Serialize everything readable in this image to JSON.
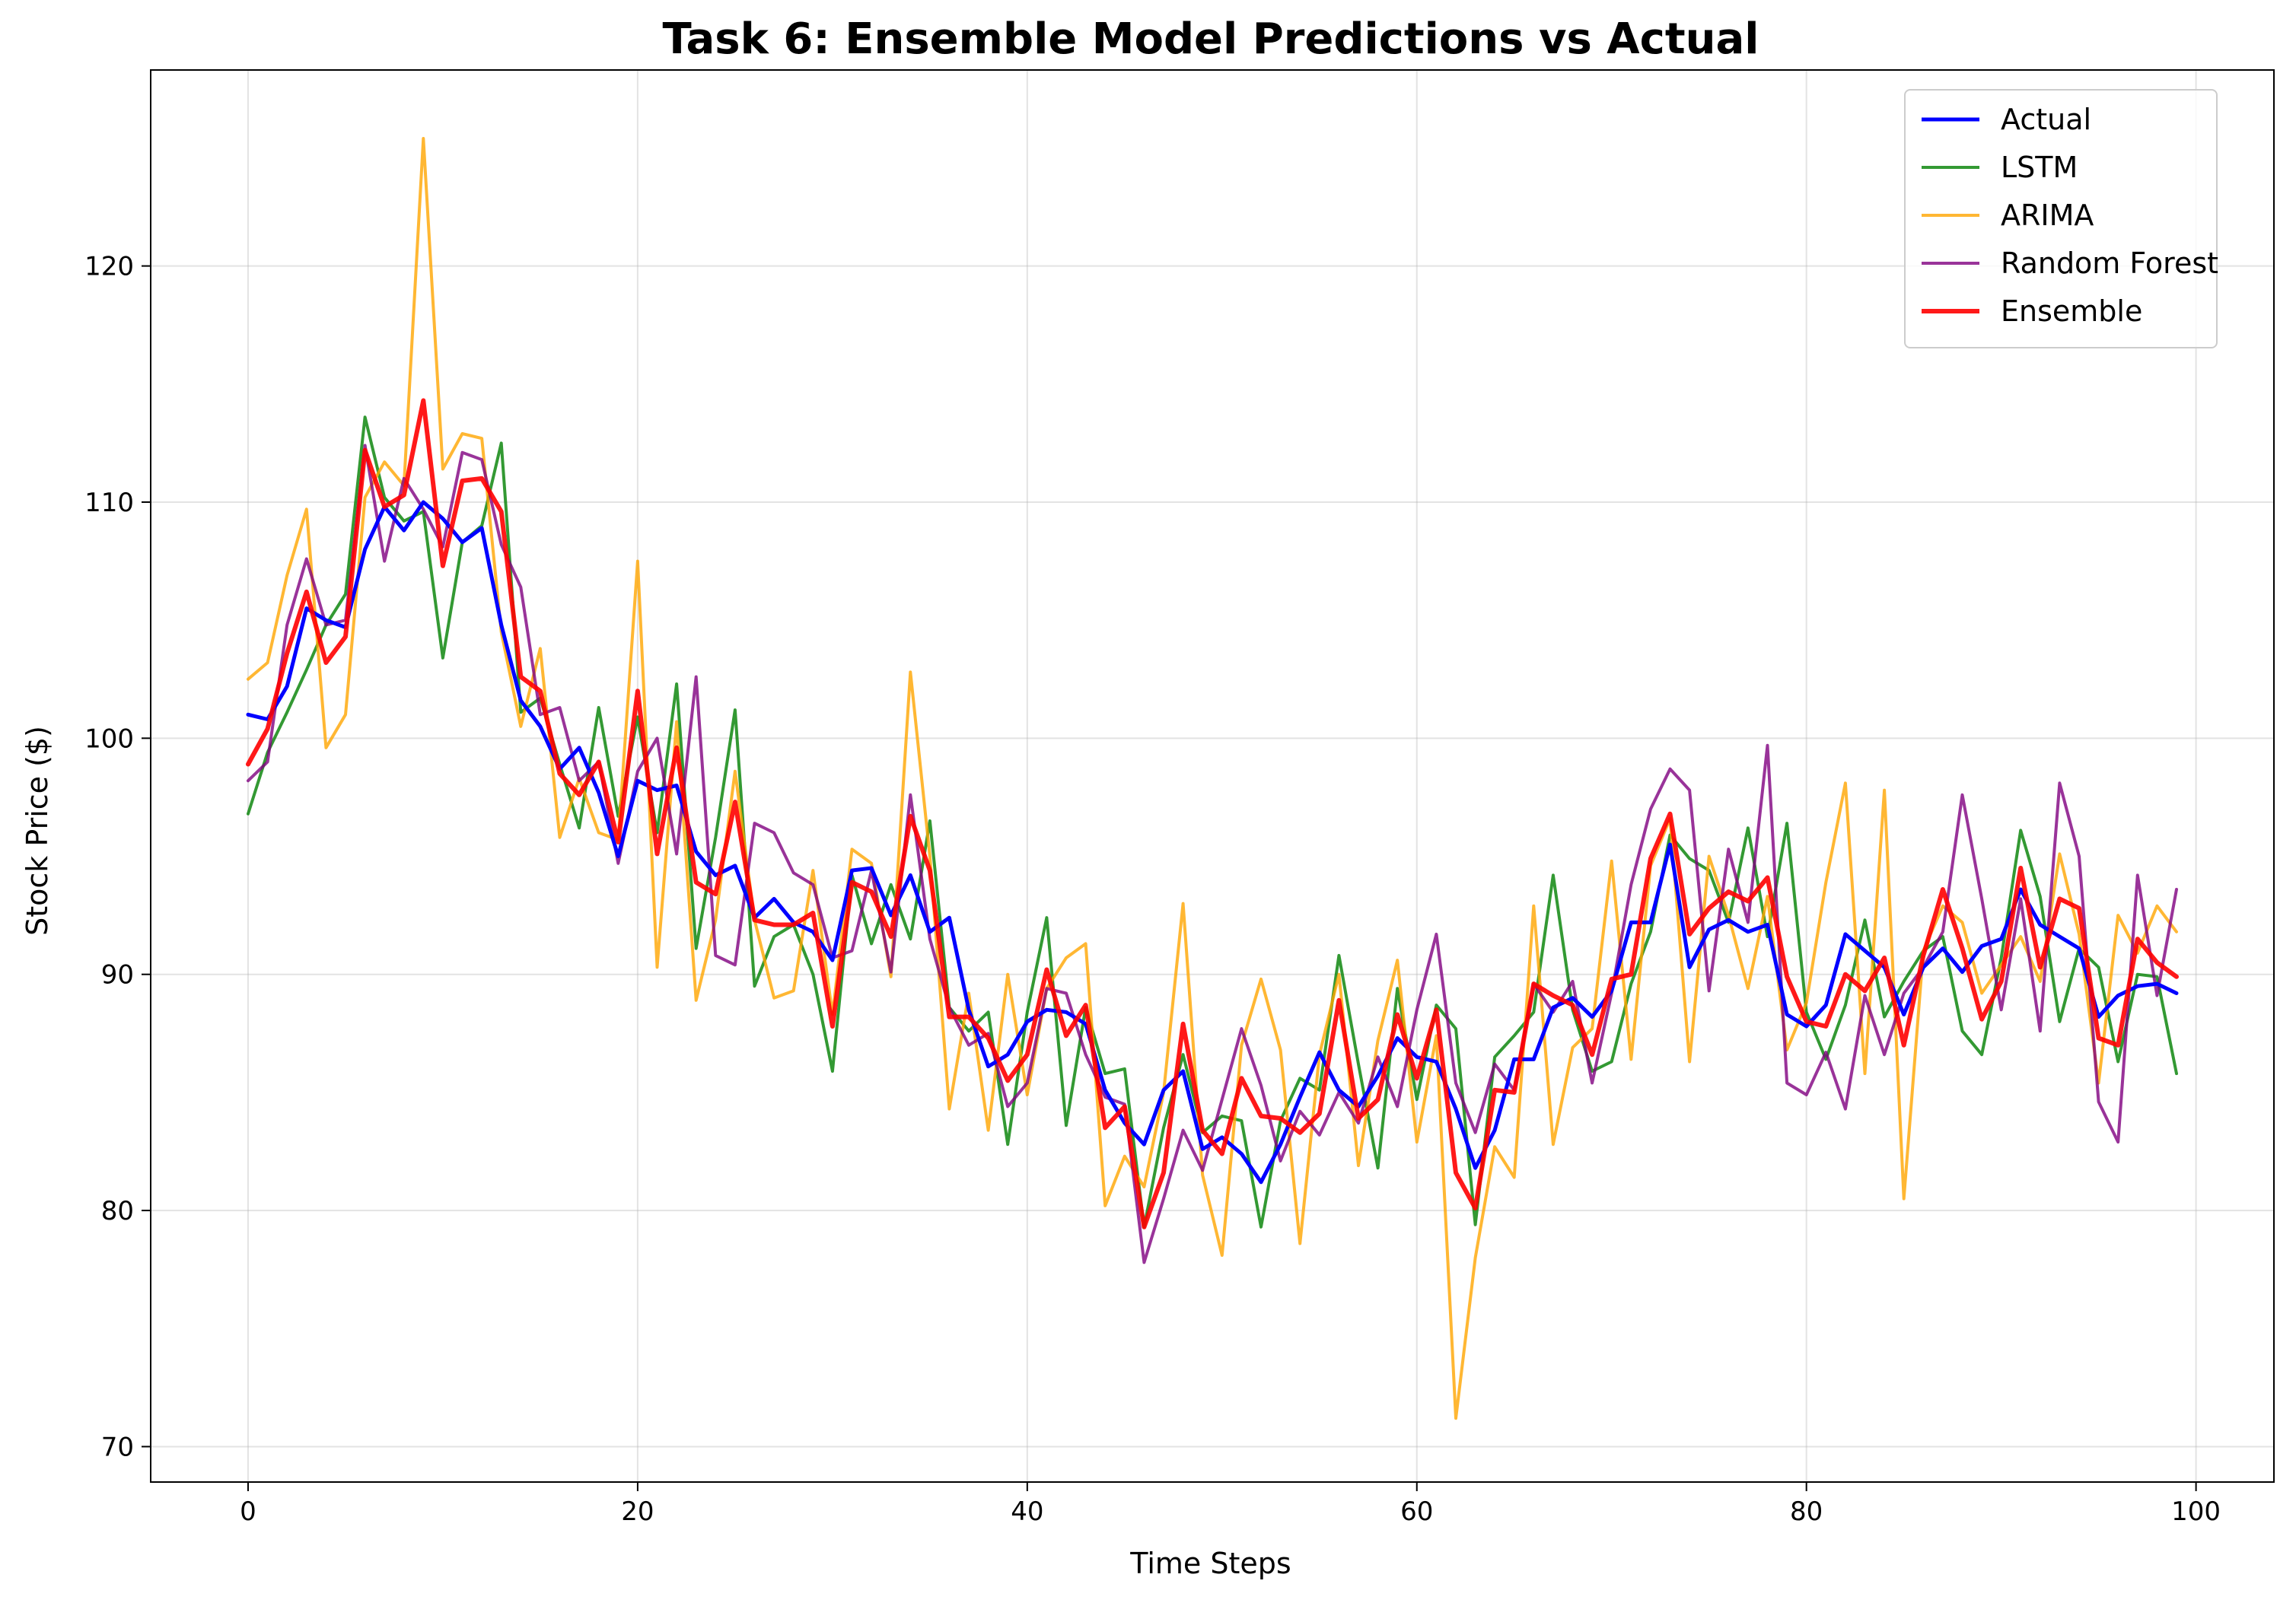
{
  "chart_data": {
    "type": "line",
    "title": "Task 6: Ensemble Model Predictions vs Actual",
    "xlabel": "Time Steps",
    "ylabel": "Stock Price ($)",
    "xlim": [
      -5,
      104
    ],
    "ylim": [
      68.5,
      128.3
    ],
    "xticks": [
      0,
      20,
      40,
      60,
      80,
      100
    ],
    "yticks": [
      70,
      80,
      90,
      100,
      110,
      120
    ],
    "grid": true,
    "legend_position": "upper right",
    "x": [
      0,
      1,
      2,
      3,
      4,
      5,
      6,
      7,
      8,
      9,
      10,
      11,
      12,
      13,
      14,
      15,
      16,
      17,
      18,
      19,
      20,
      21,
      22,
      23,
      24,
      25,
      26,
      27,
      28,
      29,
      30,
      31,
      32,
      33,
      34,
      35,
      36,
      37,
      38,
      39,
      40,
      41,
      42,
      43,
      44,
      45,
      46,
      47,
      48,
      49,
      50,
      51,
      52,
      53,
      54,
      55,
      56,
      57,
      58,
      59,
      60,
      61,
      62,
      63,
      64,
      65,
      66,
      67,
      68,
      69,
      70,
      71,
      72,
      73,
      74,
      75,
      76,
      77,
      78,
      79,
      80,
      81,
      82,
      83,
      84,
      85,
      86,
      87,
      88,
      89,
      90,
      91,
      92,
      93,
      94,
      95,
      96,
      97,
      98,
      99
    ],
    "series": [
      {
        "name": "Actual",
        "color": "#0000ff",
        "width": 2.5,
        "values": [
          101.0,
          100.8,
          102.2,
          105.5,
          105.0,
          104.7,
          108.0,
          109.8,
          108.8,
          110.0,
          109.3,
          108.3,
          108.9,
          104.8,
          101.6,
          100.5,
          98.7,
          99.6,
          97.7,
          95.0,
          98.2,
          97.8,
          98.0,
          95.2,
          94.2,
          94.6,
          92.4,
          93.2,
          92.2,
          91.8,
          90.6,
          94.4,
          94.5,
          92.5,
          94.2,
          91.8,
          92.4,
          88.5,
          86.1,
          86.6,
          88.0,
          88.5,
          88.4,
          87.9,
          85.1,
          83.7,
          82.8,
          85.1,
          85.9,
          82.6,
          83.1,
          82.4,
          81.2,
          82.8,
          84.8,
          86.7,
          85.1,
          84.4,
          85.7,
          87.3,
          86.5,
          86.3,
          84.3,
          81.8,
          83.4,
          86.4,
          86.4,
          88.6,
          89.0,
          88.2,
          89.3,
          92.2,
          92.2,
          95.5,
          90.3,
          91.9,
          92.3,
          91.8,
          92.1,
          88.3,
          87.8,
          88.7,
          91.7,
          91.0,
          90.3,
          88.3,
          90.3,
          91.1,
          90.1,
          91.2,
          91.5,
          93.6,
          92.1,
          91.6,
          91.1,
          88.2,
          89.1,
          89.5,
          89.6,
          89.2
        ]
      },
      {
        "name": "LSTM",
        "color": "#008000",
        "width": 2,
        "values": [
          96.8,
          99.4,
          101.1,
          102.9,
          104.8,
          106.1,
          113.6,
          110.2,
          109.2,
          109.6,
          103.4,
          108.3,
          109.0,
          112.5,
          101.1,
          101.7,
          98.9,
          96.2,
          101.3,
          96.7,
          100.9,
          96.0,
          102.3,
          91.1,
          95.8,
          101.2,
          89.5,
          91.6,
          92.1,
          90.0,
          85.9,
          94.2,
          91.3,
          93.8,
          91.5,
          96.5,
          88.6,
          87.6,
          88.4,
          82.8,
          88.4,
          92.4,
          83.6,
          88.6,
          85.8,
          86.0,
          79.3,
          83.5,
          86.6,
          83.3,
          84.0,
          83.8,
          79.3,
          83.8,
          85.6,
          85.1,
          90.8,
          86.2,
          81.8,
          89.4,
          84.7,
          88.7,
          87.7,
          79.4,
          86.5,
          87.4,
          88.4,
          94.2,
          88.5,
          85.9,
          86.3,
          89.6,
          91.8,
          95.9,
          94.9,
          94.4,
          92.2,
          96.2,
          91.6,
          96.4,
          88.4,
          86.4,
          88.7,
          92.3,
          88.2,
          89.7,
          91.0,
          91.6,
          87.6,
          86.6,
          90.7,
          96.1,
          93.3,
          88.0,
          91.1,
          90.3,
          86.3,
          90.0,
          89.9,
          85.8
        ]
      },
      {
        "name": "ARIMA",
        "color": "#ffa500",
        "width": 2,
        "values": [
          102.5,
          103.2,
          106.9,
          109.7,
          99.6,
          101.0,
          110.2,
          111.7,
          110.7,
          125.4,
          111.4,
          112.9,
          112.7,
          104.5,
          100.5,
          103.8,
          95.8,
          98.3,
          96.0,
          95.7,
          107.5,
          90.3,
          100.7,
          88.9,
          92.3,
          98.6,
          92.3,
          89.0,
          89.3,
          94.4,
          88.3,
          95.3,
          94.7,
          89.9,
          102.8,
          95.0,
          84.3,
          89.2,
          83.4,
          90.0,
          84.9,
          89.4,
          90.7,
          91.3,
          80.2,
          82.3,
          81.0,
          85.0,
          93.0,
          81.5,
          78.1,
          87.0,
          89.8,
          86.8,
          78.6,
          86.6,
          90.0,
          81.9,
          87.2,
          90.6,
          82.9,
          87.4,
          71.2,
          78.0,
          82.7,
          81.4,
          92.9,
          82.8,
          86.9,
          87.7,
          94.8,
          86.4,
          94.6,
          96.6,
          86.3,
          95.0,
          92.5,
          89.4,
          93.3,
          86.8,
          88.8,
          93.9,
          98.1,
          85.8,
          97.8,
          80.5,
          91.0,
          92.9,
          92.2,
          89.2,
          90.4,
          91.6,
          89.7,
          95.1,
          91.7,
          85.4,
          92.5,
          90.9,
          92.9,
          91.8
        ]
      },
      {
        "name": "Random Forest",
        "color": "#800080",
        "width": 2,
        "values": [
          98.2,
          99.0,
          104.8,
          107.6,
          104.8,
          105.0,
          112.4,
          107.5,
          111.0,
          109.7,
          108.1,
          112.1,
          111.8,
          108.2,
          106.4,
          101.0,
          101.3,
          98.2,
          99.0,
          94.7,
          98.6,
          100.0,
          95.1,
          102.6,
          90.8,
          90.4,
          96.4,
          96.0,
          94.3,
          93.8,
          90.7,
          91.0,
          94.4,
          90.1,
          97.6,
          91.5,
          88.6,
          87.0,
          87.5,
          84.4,
          85.4,
          89.4,
          89.2,
          86.6,
          84.8,
          84.5,
          77.8,
          80.5,
          83.4,
          81.7,
          84.7,
          87.7,
          85.3,
          82.1,
          84.2,
          83.2,
          85.0,
          83.7,
          86.5,
          84.4,
          88.5,
          91.7,
          85.4,
          83.3,
          86.2,
          85.1,
          89.6,
          88.4,
          89.7,
          85.4,
          89.2,
          93.8,
          97.0,
          98.7,
          97.8,
          89.3,
          95.3,
          92.2,
          99.7,
          85.4,
          84.9,
          86.7,
          84.3,
          89.1,
          86.6,
          89.2,
          90.3,
          91.8,
          97.6,
          93.2,
          88.5,
          93.2,
          87.6,
          98.1,
          95.0,
          84.6,
          82.9,
          94.2,
          89.1,
          93.6
        ]
      },
      {
        "name": "Ensemble",
        "color": "#ff0000",
        "width": 3,
        "values": [
          98.9,
          100.4,
          103.6,
          106.2,
          103.2,
          104.3,
          112.2,
          109.8,
          110.3,
          114.3,
          107.3,
          110.9,
          111.0,
          109.6,
          102.6,
          102.0,
          98.5,
          97.6,
          99.0,
          95.6,
          102.0,
          95.1,
          99.6,
          93.9,
          93.4,
          97.3,
          92.3,
          92.1,
          92.1,
          92.6,
          87.8,
          93.9,
          93.5,
          91.6,
          96.7,
          94.4,
          88.2,
          88.2,
          87.3,
          85.5,
          86.6,
          90.2,
          87.4,
          88.7,
          83.5,
          84.4,
          79.3,
          81.6,
          87.9,
          83.4,
          82.4,
          85.6,
          84.0,
          83.9,
          83.3,
          84.1,
          88.9,
          83.9,
          84.7,
          88.3,
          85.6,
          88.5,
          81.6,
          80.1,
          85.1,
          85.0,
          89.6,
          89.1,
          88.7,
          86.6,
          89.8,
          90.0,
          94.9,
          96.8,
          91.7,
          92.8,
          93.5,
          93.1,
          94.1,
          89.9,
          88.0,
          87.8,
          90.0,
          89.3,
          90.7,
          87.0,
          90.8,
          93.6,
          91.1,
          88.1,
          89.7,
          94.5,
          90.3,
          93.2,
          92.8,
          87.3,
          87.0,
          91.5,
          90.5,
          89.9
        ]
      }
    ]
  }
}
